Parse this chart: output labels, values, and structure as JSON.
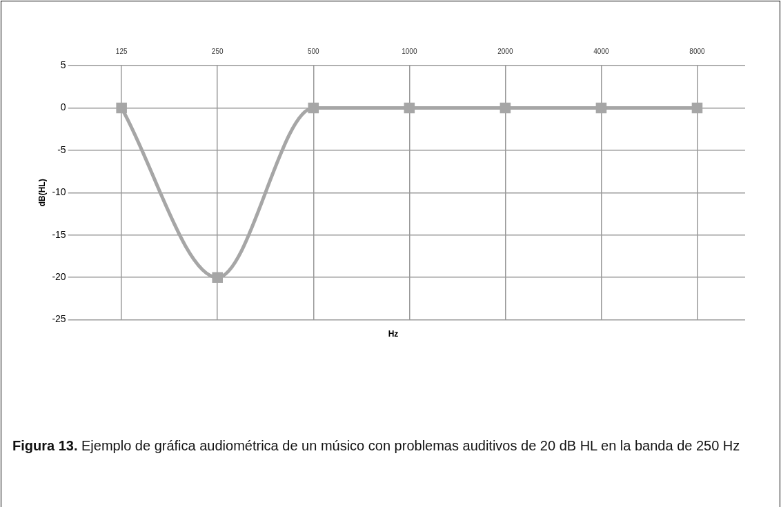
{
  "chart_data": {
    "type": "line",
    "categories": [
      "125",
      "250",
      "500",
      "1000",
      "2000",
      "4000",
      "8000"
    ],
    "series": [
      {
        "color": "#a6a6a6",
        "values": [
          0,
          -20,
          0,
          0,
          0,
          0,
          0
        ]
      }
    ],
    "xlabel": "Hz",
    "ylabel": "dB(HL)",
    "ylim": [
      -25,
      5
    ],
    "yticks": [
      -25,
      -20,
      -15,
      -10,
      -5,
      0,
      5
    ],
    "grid": true,
    "legend": false,
    "marker": "square",
    "line_style": "solid",
    "annotations": [
      "Figura 13.",
      "Ejemplo de gráfica audiométrica de un músico con problemas auditivos de 20 dB HL en la banda de 250 Hz"
    ]
  }
}
